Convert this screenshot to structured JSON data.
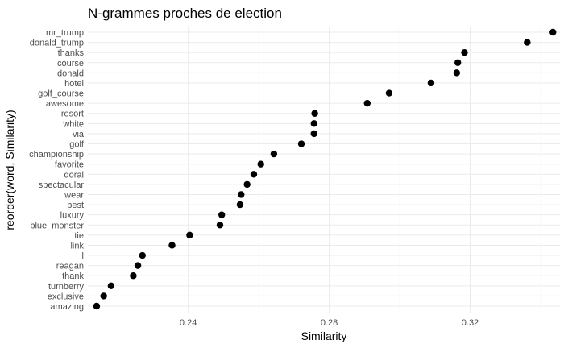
{
  "chart_data": {
    "type": "scatter",
    "title": "N-grammes proches de election",
    "xlabel": "Similarity",
    "ylabel": "reorder(word, Similarity)",
    "xlim": [
      0.2115,
      0.3455
    ],
    "xticks": [
      0.24,
      0.28,
      0.32
    ],
    "xtick_labels": [
      "0.24",
      "0.28",
      "0.32"
    ],
    "grid": true,
    "legend": "none",
    "point_color": "#000000",
    "categories": [
      "mr_trump",
      "donald_trump",
      "thanks",
      "course",
      "donald",
      "hotel",
      "golf_course",
      "awesome",
      "resort",
      "white",
      "via",
      "golf",
      "championship",
      "favorite",
      "doral",
      "spectacular",
      "wear",
      "best",
      "luxury",
      "blue_monster",
      "tie",
      "link",
      "l",
      "reagan",
      "thank",
      "turnberry",
      "exclusive",
      "amazing"
    ],
    "values": [
      0.3435,
      0.3362,
      0.3184,
      0.3165,
      0.3162,
      0.3089,
      0.297,
      0.2908,
      0.2759,
      0.2757,
      0.2757,
      0.2721,
      0.2643,
      0.2606,
      0.2586,
      0.2567,
      0.255,
      0.2547,
      0.2495,
      0.249,
      0.2404,
      0.2354,
      0.227,
      0.2257,
      0.2244,
      0.2181,
      0.216,
      0.214
    ]
  }
}
